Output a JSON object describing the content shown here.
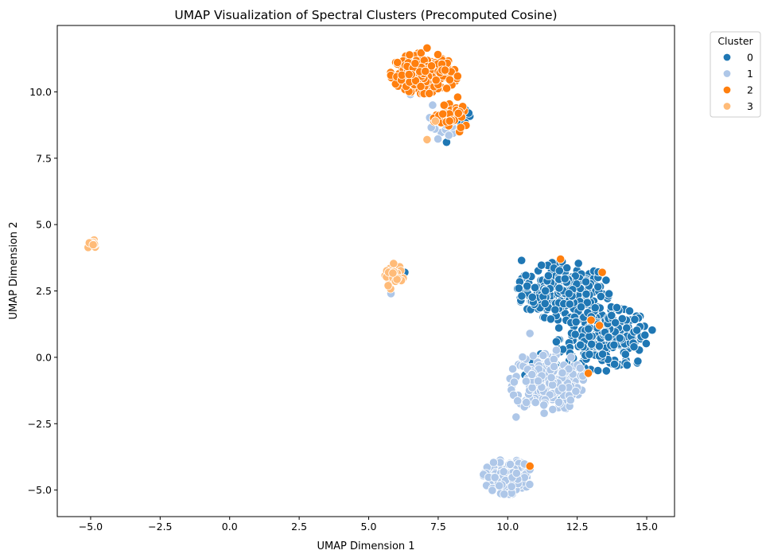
{
  "chart_data": {
    "type": "scatter",
    "title": "UMAP Visualization of Spectral Clusters (Precomputed Cosine)",
    "xlabel": "UMAP Dimension 1",
    "ylabel": "UMAP Dimension 2",
    "xlim": [
      -6.2,
      16.0
    ],
    "ylim": [
      -6.0,
      12.5
    ],
    "xticks": [
      -5.0,
      -2.5,
      0.0,
      2.5,
      5.0,
      7.5,
      10.0,
      12.5,
      15.0
    ],
    "yticks": [
      -5.0,
      -2.5,
      0.0,
      2.5,
      5.0,
      7.5,
      10.0
    ],
    "xtick_labels": [
      "−5.0",
      "−2.5",
      "0.0",
      "2.5",
      "5.0",
      "7.5",
      "10.0",
      "12.5",
      "15.0"
    ],
    "ytick_labels": [
      "−5.0",
      "−2.5",
      "0.0",
      "2.5",
      "5.0",
      "7.5",
      "10.0"
    ],
    "grid": false,
    "legend": {
      "title": "Cluster",
      "placement": "outside-top-right",
      "entries": [
        {
          "label": "0",
          "color": "#1f77b4"
        },
        {
          "label": "1",
          "color": "#aec7e8"
        },
        {
          "label": "2",
          "color": "#ff7f0e"
        },
        {
          "label": "3",
          "color": "#ffbb78"
        }
      ]
    },
    "series": [
      {
        "name": "0",
        "color": "#1f77b4",
        "blobs": [
          {
            "center": [
              12.0,
              2.5
            ],
            "spread": [
              0.75,
              0.5
            ],
            "count": 260
          },
          {
            "center": [
              13.5,
              0.7
            ],
            "spread": [
              0.8,
              0.55
            ],
            "count": 260
          },
          {
            "center": [
              11.5,
              -0.7
            ],
            "spread": [
              0.4,
              0.4
            ],
            "count": 40
          },
          {
            "center": [
              8.1,
              9.0
            ],
            "spread": [
              0.25,
              0.2
            ],
            "count": 12
          },
          {
            "center": [
              7.3,
              10.6
            ],
            "spread": [
              0.4,
              0.3
            ],
            "count": 10
          }
        ],
        "points": [
          [
            10.5,
            3.65
          ],
          [
            6.3,
            3.2
          ],
          [
            10.4,
            2.6
          ],
          [
            12.2,
            2.4
          ],
          [
            8.6,
            9.2
          ],
          [
            8.0,
            9.0
          ],
          [
            7.8,
            8.1
          ]
        ]
      },
      {
        "name": "1",
        "color": "#aec7e8",
        "blobs": [
          {
            "center": [
              11.4,
              -0.9
            ],
            "spread": [
              0.6,
              0.55
            ],
            "count": 230
          },
          {
            "center": [
              10.0,
              -4.5
            ],
            "spread": [
              0.4,
              0.3
            ],
            "count": 200
          },
          {
            "center": [
              7.6,
              8.7
            ],
            "spread": [
              0.25,
              0.22
            ],
            "count": 20
          }
        ],
        "points": [
          [
            10.3,
            -2.25
          ],
          [
            5.8,
            2.4
          ],
          [
            11.0,
            -1.7
          ],
          [
            11.3,
            -1.8
          ],
          [
            7.3,
            9.5
          ],
          [
            6.5,
            9.9
          ],
          [
            10.8,
            0.9
          ]
        ]
      },
      {
        "name": "2",
        "color": "#ff7f0e",
        "blobs": [
          {
            "center": [
              7.0,
              10.7
            ],
            "spread": [
              0.55,
              0.35
            ],
            "count": 220
          },
          {
            "center": [
              8.0,
              9.0
            ],
            "spread": [
              0.3,
              0.25
            ],
            "count": 40
          }
        ],
        "points": [
          [
            11.9,
            3.7
          ],
          [
            13.4,
            3.2
          ],
          [
            13.3,
            1.2
          ],
          [
            10.8,
            -4.1
          ],
          [
            7.1,
            11.65
          ],
          [
            8.2,
            9.8
          ],
          [
            12.9,
            -0.6
          ],
          [
            13.0,
            1.4
          ]
        ]
      },
      {
        "name": "3",
        "color": "#ffbb78",
        "blobs": [
          {
            "center": [
              -4.95,
              4.25
            ],
            "spread": [
              0.12,
              0.08
            ],
            "count": 14
          },
          {
            "center": [
              5.85,
              3.05
            ],
            "spread": [
              0.18,
              0.22
            ],
            "count": 30
          }
        ],
        "points": [
          [
            7.1,
            8.2
          ],
          [
            5.7,
            2.7
          ],
          [
            7.4,
            8.9
          ]
        ]
      }
    ]
  }
}
